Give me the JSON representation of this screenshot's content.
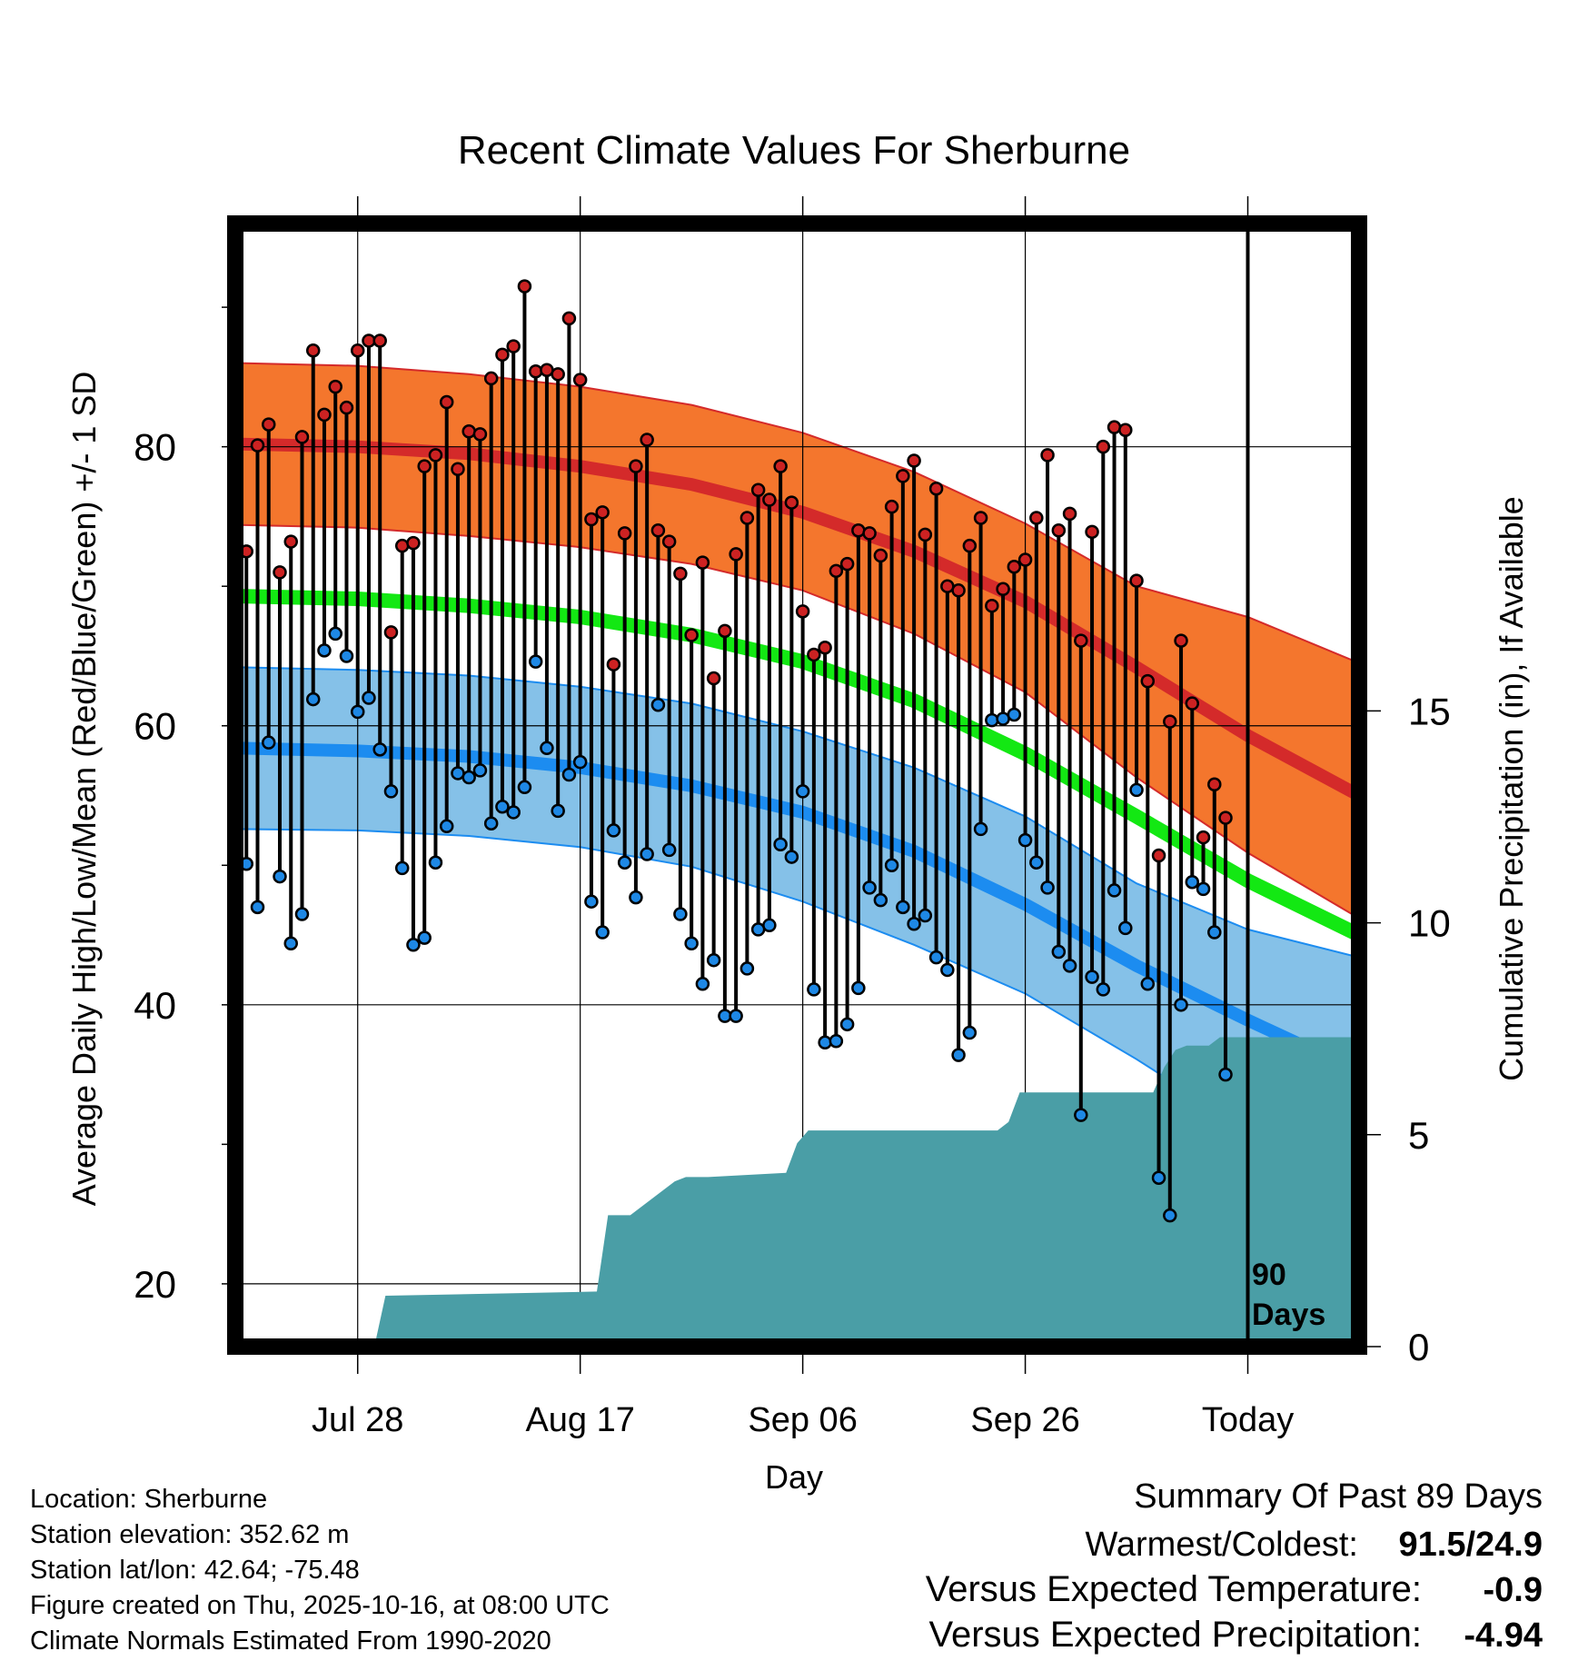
{
  "chart_data": {
    "type": "line",
    "title": "Recent Climate Values For Sherburne",
    "xlabel": "Day",
    "ylabel": "Average Daily High/Low/Mean (Red/Blue/Green) +/- 1 SD",
    "y2label": "Cumulative Precipitation (in), If Available",
    "xlim": [
      -11,
      90
    ],
    "ylim": [
      15.5,
      96
    ],
    "y2lim": [
      0,
      26.5
    ],
    "x_ticks": [
      {
        "x": 0,
        "label": "Jul 28"
      },
      {
        "x": 20,
        "label": "Aug 17"
      },
      {
        "x": 40,
        "label": "Sep 06"
      },
      {
        "x": 60,
        "label": "Sep 26"
      },
      {
        "x": 80,
        "label": "Today"
      }
    ],
    "y_ticks": [
      20,
      40,
      60,
      80
    ],
    "y_minor_ticks": [
      30,
      50,
      70,
      90
    ],
    "y2_ticks": [
      0,
      5,
      10,
      15
    ],
    "today_x": 80,
    "today_label_line1": "90",
    "today_label_line2": "Days",
    "colors": {
      "high_band": "#f4762d",
      "high_mean": "#d42a2a",
      "mean_line": "#13e813",
      "low_band": "#85c1e8",
      "low_mean": "#1c8cf0",
      "precip": "#4a9ea6",
      "high_dot": "#cc2222",
      "low_dot": "#1e88e5",
      "temp_neg": "#1e88e5",
      "precip_neg": "#a0522d"
    },
    "normals": {
      "x": [
        -11,
        0,
        10,
        20,
        30,
        40,
        50,
        60,
        70,
        80,
        90
      ],
      "high_mean": [
        80.2,
        80.0,
        79.5,
        78.6,
        77.3,
        75.3,
        72.5,
        68.9,
        64.2,
        59.3,
        55.0
      ],
      "high_upper": [
        86.0,
        85.8,
        85.2,
        84.3,
        83.0,
        81.0,
        78.2,
        74.5,
        70.0,
        67.8,
        64.5
      ],
      "high_lower": [
        74.4,
        74.2,
        73.6,
        72.8,
        71.6,
        69.7,
        66.6,
        62.4,
        56.3,
        50.9,
        46.2
      ],
      "mean_line": [
        69.3,
        69.1,
        68.6,
        67.8,
        66.5,
        64.6,
        61.8,
        58.0,
        53.5,
        48.9,
        45.0
      ],
      "low_mean": [
        58.4,
        58.2,
        57.8,
        57.0,
        55.7,
        53.8,
        51.0,
        47.2,
        42.8,
        38.9,
        35.2
      ],
      "low_upper": [
        64.2,
        64.0,
        63.6,
        62.8,
        61.6,
        59.6,
        57.0,
        53.5,
        48.7,
        45.4,
        43.4
      ],
      "low_lower": [
        52.6,
        52.5,
        52.1,
        51.3,
        49.9,
        47.4,
        44.3,
        40.8,
        36.1,
        31.0,
        27.5
      ]
    },
    "series": [
      {
        "name": "Daily High",
        "values": [
          72.5,
          80.1,
          81.6,
          71.0,
          73.2,
          80.7,
          86.9,
          82.3,
          84.3,
          82.8,
          86.9,
          87.6,
          87.6,
          66.7,
          72.9,
          73.1,
          78.6,
          79.4,
          83.2,
          78.4,
          81.1,
          80.9,
          84.9,
          86.6,
          87.2,
          91.5,
          85.4,
          85.5,
          85.2,
          89.2,
          84.8,
          74.8,
          75.3,
          64.4,
          73.8,
          78.6,
          80.5,
          74.0,
          73.2,
          70.9,
          66.5,
          71.7,
          63.4,
          66.8,
          72.3,
          74.9,
          76.9,
          76.2,
          78.6,
          76.0,
          68.2,
          65.1,
          65.6,
          71.1,
          71.6,
          74.0,
          73.8,
          72.2,
          75.7,
          77.9,
          79.0,
          73.7,
          77.0,
          70.0,
          69.7,
          72.9,
          74.9,
          68.6,
          69.8,
          71.4,
          71.9,
          74.9,
          79.4,
          74.0,
          75.2,
          66.1,
          73.9,
          80.0,
          81.4,
          81.2,
          70.4,
          63.2,
          50.7,
          60.3,
          66.1,
          61.6,
          52.0,
          55.8,
          53.4
        ]
      },
      {
        "name": "Daily Low",
        "values": [
          50.1,
          47.0,
          58.8,
          49.2,
          44.4,
          46.5,
          61.9,
          65.4,
          66.6,
          65.0,
          61.0,
          62.0,
          58.3,
          55.3,
          49.8,
          44.3,
          44.8,
          50.2,
          52.8,
          56.6,
          56.3,
          56.8,
          53.0,
          54.2,
          53.8,
          55.6,
          64.6,
          58.4,
          53.9,
          56.5,
          57.4,
          47.4,
          45.2,
          52.5,
          50.2,
          47.7,
          50.8,
          61.5,
          51.1,
          46.5,
          44.4,
          41.5,
          43.2,
          39.2,
          39.2,
          42.6,
          45.4,
          45.7,
          51.5,
          50.6,
          55.3,
          41.1,
          37.3,
          37.4,
          38.6,
          41.2,
          48.4,
          47.5,
          50.0,
          47.0,
          45.8,
          46.4,
          43.4,
          42.5,
          36.4,
          38.0,
          52.6,
          60.4,
          60.5,
          60.8,
          51.8,
          50.2,
          48.4,
          43.8,
          42.8,
          32.1,
          42.0,
          41.1,
          48.2,
          45.5,
          55.4,
          41.5,
          27.6,
          24.9,
          40.0,
          48.8,
          48.3,
          45.2,
          35.0
        ]
      }
    ],
    "precip": {
      "x": [
        -11,
        1.5,
        2.5,
        21.5,
        22.5,
        24.5,
        28.5,
        29.5,
        31.5,
        38.5,
        39.5,
        40.5,
        47.5,
        57.5,
        58.5,
        59.5,
        70.5,
        71.5,
        72.5,
        73.5,
        74.5,
        76.5,
        77.5,
        80,
        90
      ],
      "values": [
        0,
        0,
        1.2,
        1.3,
        3.1,
        3.1,
        3.9,
        4.0,
        4.0,
        4.1,
        4.8,
        5.1,
        5.1,
        5.1,
        5.3,
        6.0,
        6.0,
        6.0,
        6.6,
        7.0,
        7.1,
        7.1,
        7.3,
        7.3,
        7.3
      ]
    }
  },
  "info": {
    "location": "Location: Sherburne",
    "elevation": "Station elevation: 352.62 m",
    "latlon": "Station lat/lon: 42.64; -75.48",
    "created": "Figure created on Thu, 2025-10-16, at 08:00 UTC",
    "normals": "Climate Normals Estimated From 1990-2020"
  },
  "summary": {
    "title": "Summary Of Past 89 Days",
    "warm_cold_label": "Warmest/Coldest:",
    "warm_cold_value": "91.5/24.9",
    "temp_label": "Versus Expected Temperature:",
    "temp_value": "-0.9",
    "precip_label": "Versus Expected Precipitation:",
    "precip_value": "-4.94"
  }
}
